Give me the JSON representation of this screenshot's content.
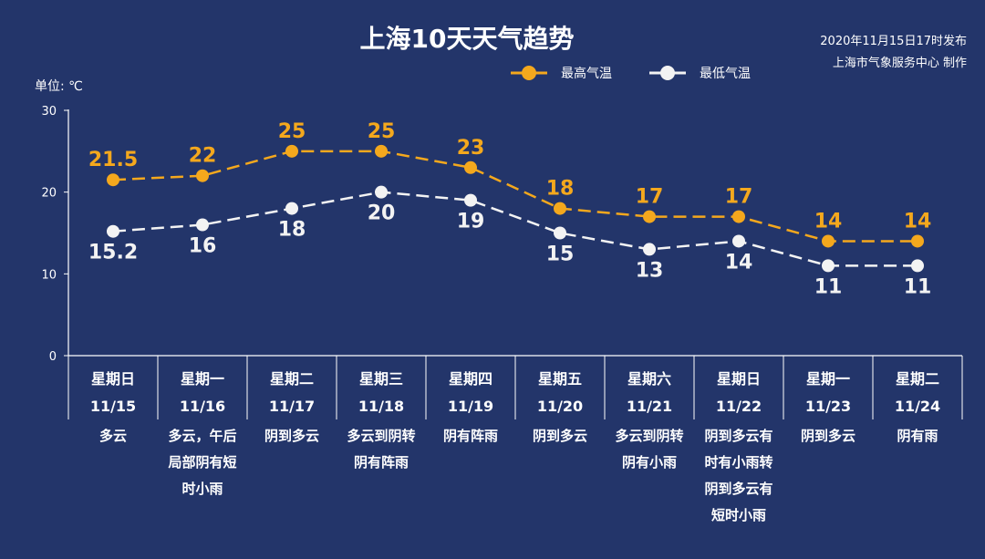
{
  "header": {
    "publish_time": "2020年11月15日17时发布",
    "publisher": "上海市气象服务中心 制作"
  },
  "colors": {
    "background": "#23356a",
    "high": "#f4a81d",
    "low": "#f3f3f3",
    "axis": "#ffffff"
  },
  "chart_data": {
    "type": "line",
    "title": "上海10天天气趋势",
    "ylabel": "单位: ℃",
    "ylim": [
      0,
      30
    ],
    "yticks": [
      0,
      10,
      20,
      30
    ],
    "grid": false,
    "legend_position": "top-right",
    "categories": [
      {
        "day": "星期日",
        "date": "11/15",
        "weather": [
          "多云"
        ]
      },
      {
        "day": "星期一",
        "date": "11/16",
        "weather": [
          "多云，午后",
          "局部阴有短",
          "时小雨"
        ]
      },
      {
        "day": "星期二",
        "date": "11/17",
        "weather": [
          "阴到多云"
        ]
      },
      {
        "day": "星期三",
        "date": "11/18",
        "weather": [
          "多云到阴转",
          "阴有阵雨"
        ]
      },
      {
        "day": "星期四",
        "date": "11/19",
        "weather": [
          "阴有阵雨"
        ]
      },
      {
        "day": "星期五",
        "date": "11/20",
        "weather": [
          "阴到多云"
        ]
      },
      {
        "day": "星期六",
        "date": "11/21",
        "weather": [
          "多云到阴转",
          "阴有小雨"
        ]
      },
      {
        "day": "星期日",
        "date": "11/22",
        "weather": [
          "阴到多云有",
          "时有小雨转",
          "阴到多云有",
          "短时小雨"
        ]
      },
      {
        "day": "星期一",
        "date": "11/23",
        "weather": [
          "阴到多云"
        ]
      },
      {
        "day": "星期二",
        "date": "11/24",
        "weather": [
          "阴有雨"
        ]
      }
    ],
    "series": [
      {
        "name": "最高气温",
        "values": [
          21.5,
          22,
          25,
          25,
          23,
          18,
          17,
          17,
          14,
          14
        ],
        "labels": [
          "21.5",
          "22",
          "25",
          "25",
          "23",
          "18",
          "17",
          "17",
          "14",
          "14"
        ]
      },
      {
        "name": "最低气温",
        "values": [
          15.2,
          16,
          18,
          20,
          19,
          15,
          13,
          14,
          11,
          11
        ],
        "labels": [
          "15.2",
          "16",
          "18",
          "20",
          "19",
          "15",
          "13",
          "14",
          "11",
          "11"
        ]
      }
    ]
  }
}
